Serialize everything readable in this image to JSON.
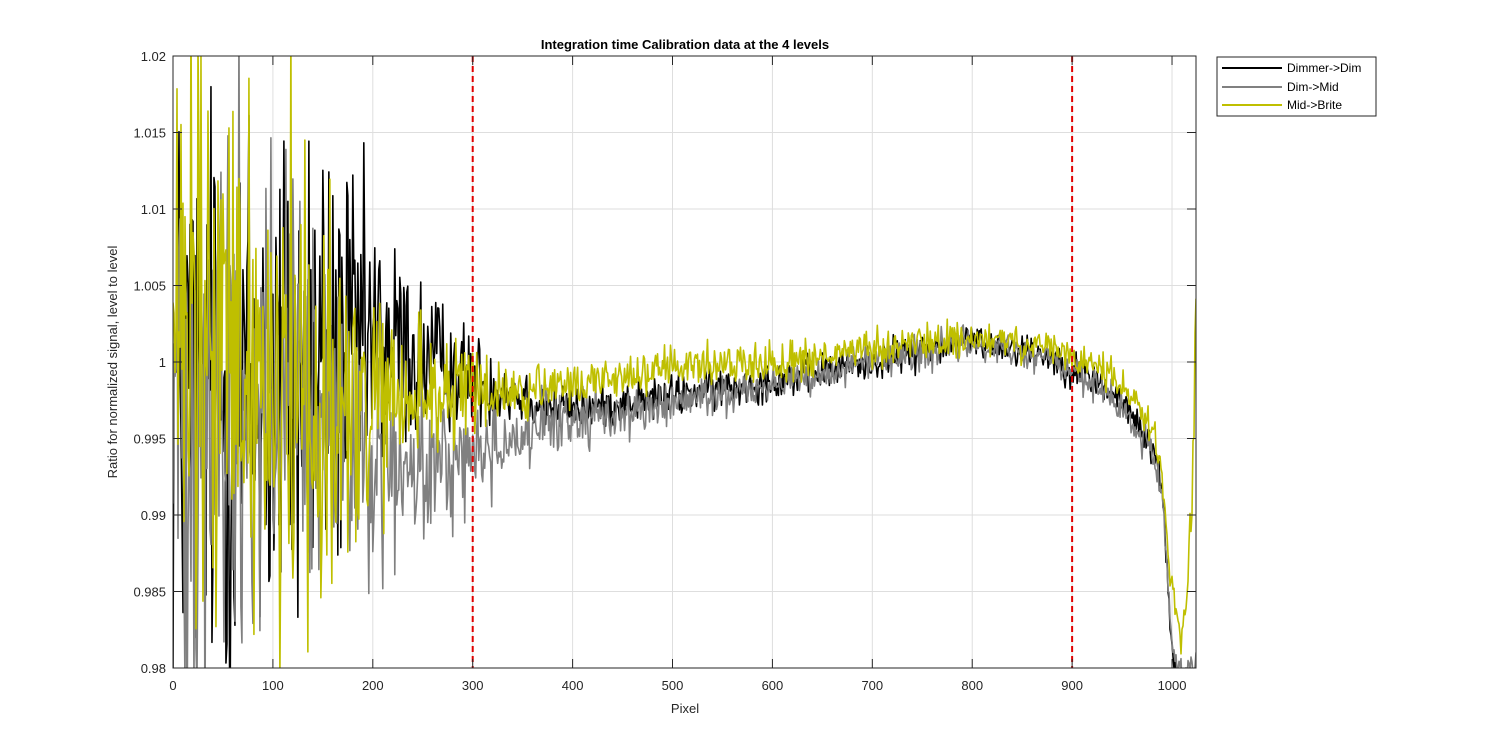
{
  "chart_data": {
    "type": "line",
    "title": "Integration time Calibration data at the 4 levels",
    "xlabel": "Pixel",
    "ylabel": "Ratio for normalized signal, level to level",
    "xlim": [
      0,
      1024
    ],
    "ylim": [
      0.98,
      1.02
    ],
    "x_ticks": [
      0,
      100,
      200,
      300,
      400,
      500,
      600,
      700,
      800,
      900,
      1000
    ],
    "x_tick_labels": [
      "0",
      "100",
      "200",
      "300",
      "400",
      "500",
      "600",
      "700",
      "800",
      "900",
      "1000"
    ],
    "y_ticks": [
      0.98,
      0.985,
      0.99,
      0.995,
      1.0,
      1.005,
      1.01,
      1.015,
      1.02
    ],
    "y_tick_labels": [
      "0.98",
      "0.985",
      "0.99",
      "0.995",
      "1",
      "1.005",
      "1.01",
      "1.015",
      "1.02"
    ],
    "grid": true,
    "legend_position": "outside-top-right",
    "reference_lines": [
      {
        "x": 300,
        "color": "#e00000",
        "style": "dashed"
      },
      {
        "x": 900,
        "color": "#e00000",
        "style": "dashed"
      }
    ],
    "series": [
      {
        "name": "Dimmer->Dim",
        "color": "#000000",
        "x": [
          0,
          20,
          40,
          60,
          80,
          100,
          120,
          140,
          160,
          180,
          200,
          220,
          240,
          260,
          280,
          300,
          320,
          340,
          360,
          380,
          400,
          420,
          440,
          460,
          480,
          500,
          520,
          540,
          560,
          580,
          600,
          620,
          640,
          660,
          680,
          700,
          720,
          740,
          760,
          780,
          800,
          820,
          840,
          860,
          880,
          900,
          920,
          940,
          960,
          980,
          990,
          1000,
          1010,
          1020,
          1024
        ],
        "y": [
          0.998,
          0.998,
          0.998,
          0.998,
          0.998,
          0.998,
          0.999,
          1.0,
          1.0,
          1.0005,
          1.001,
          1.001,
          1.0005,
          1.0,
          0.9995,
          0.999,
          0.9985,
          0.998,
          0.9975,
          0.997,
          0.997,
          0.997,
          0.9972,
          0.9974,
          0.9976,
          0.9978,
          0.998,
          0.9982,
          0.9984,
          0.9986,
          0.9988,
          0.999,
          0.9992,
          0.9995,
          0.9998,
          1.0,
          1.0003,
          1.0006,
          1.0009,
          1.0012,
          1.0014,
          1.0012,
          1.001,
          1.0007,
          1.0003,
          0.9995,
          0.999,
          0.998,
          0.9965,
          0.9945,
          0.992,
          0.981,
          0.978,
          0.979,
          0.98
        ],
        "noise": [
          0.03,
          0.03,
          0.03,
          0.03,
          0.03,
          0.03,
          0.03,
          0.026,
          0.022,
          0.018,
          0.014,
          0.011,
          0.009,
          0.007,
          0.0055,
          0.0045,
          0.0038,
          0.0032,
          0.0028,
          0.0026,
          0.0024,
          0.0022,
          0.0021,
          0.002,
          0.002,
          0.002,
          0.002,
          0.002,
          0.002,
          0.002,
          0.0019,
          0.0019,
          0.0018,
          0.0018,
          0.0018,
          0.0018,
          0.0018,
          0.0018,
          0.0018,
          0.0018,
          0.0017,
          0.0017,
          0.0017,
          0.0017,
          0.0017,
          0.0017,
          0.0018,
          0.0018,
          0.0018,
          0.0018,
          0.0018,
          0.0015,
          0.0015,
          0.0015,
          0.0015
        ]
      },
      {
        "name": "Dim->Mid",
        "color": "#808080",
        "x": [
          0,
          20,
          40,
          60,
          80,
          100,
          120,
          140,
          160,
          180,
          200,
          220,
          240,
          260,
          280,
          300,
          320,
          340,
          360,
          380,
          400,
          420,
          440,
          460,
          480,
          500,
          520,
          540,
          560,
          580,
          600,
          620,
          640,
          660,
          680,
          700,
          720,
          740,
          760,
          780,
          800,
          820,
          840,
          860,
          880,
          900,
          920,
          940,
          960,
          980,
          990,
          1000,
          1010,
          1020,
          1024
        ],
        "y": [
          0.998,
          0.998,
          0.998,
          0.998,
          0.998,
          0.998,
          0.997,
          0.996,
          0.995,
          0.994,
          0.993,
          0.9925,
          0.9925,
          0.993,
          0.9935,
          0.994,
          0.9945,
          0.995,
          0.9955,
          0.996,
          0.9962,
          0.9964,
          0.9966,
          0.9968,
          0.997,
          0.9972,
          0.9975,
          0.9978,
          0.998,
          0.9983,
          0.9986,
          0.9989,
          0.9992,
          0.9995,
          0.9998,
          1.0001,
          1.0004,
          1.0006,
          1.0008,
          1.001,
          1.0011,
          1.001,
          1.0008,
          1.0005,
          1.0001,
          0.9993,
          0.9985,
          0.9975,
          0.996,
          0.994,
          0.9915,
          0.9815,
          0.9795,
          0.98,
          0.981
        ],
        "noise": [
          0.03,
          0.03,
          0.03,
          0.03,
          0.03,
          0.03,
          0.025,
          0.02,
          0.016,
          0.013,
          0.011,
          0.009,
          0.0075,
          0.0065,
          0.0058,
          0.0052,
          0.0046,
          0.0042,
          0.0036,
          0.0032,
          0.0028,
          0.0026,
          0.0024,
          0.0022,
          0.0021,
          0.002,
          0.002,
          0.002,
          0.002,
          0.002,
          0.0019,
          0.0019,
          0.0018,
          0.0018,
          0.0018,
          0.0018,
          0.0018,
          0.0018,
          0.0018,
          0.0018,
          0.0017,
          0.0017,
          0.0017,
          0.0017,
          0.0017,
          0.0017,
          0.0018,
          0.0018,
          0.0018,
          0.0018,
          0.0018,
          0.0015,
          0.0015,
          0.0015,
          0.0015
        ]
      },
      {
        "name": "Mid->Brite",
        "color": "#bfbf00",
        "x": [
          0,
          20,
          40,
          60,
          80,
          100,
          120,
          140,
          160,
          180,
          200,
          220,
          240,
          260,
          280,
          300,
          320,
          340,
          360,
          380,
          400,
          420,
          440,
          460,
          480,
          500,
          520,
          540,
          560,
          580,
          600,
          620,
          640,
          660,
          680,
          700,
          720,
          740,
          760,
          780,
          800,
          820,
          840,
          860,
          880,
          900,
          920,
          940,
          960,
          980,
          990,
          1000,
          1010,
          1020,
          1024
        ],
        "y": [
          1.0,
          1.0,
          1.0,
          1.0,
          1.0,
          1.0,
          0.999,
          0.998,
          0.997,
          0.9965,
          0.9965,
          0.997,
          0.9975,
          0.998,
          0.998,
          0.998,
          0.998,
          0.998,
          0.998,
          0.998,
          0.9985,
          0.9988,
          0.999,
          0.9992,
          0.9994,
          0.9996,
          0.9997,
          0.9998,
          0.9999,
          1.0,
          1.0,
          1.0001,
          1.0002,
          1.0004,
          1.0006,
          1.0008,
          1.001,
          1.0012,
          1.0013,
          1.0014,
          1.0015,
          1.0014,
          1.0012,
          1.001,
          1.0008,
          1.0003,
          0.9998,
          0.999,
          0.9978,
          0.996,
          0.9925,
          0.985,
          0.982,
          0.99,
          1.004
        ],
        "noise": [
          0.03,
          0.03,
          0.03,
          0.03,
          0.03,
          0.03,
          0.028,
          0.024,
          0.02,
          0.016,
          0.012,
          0.009,
          0.0075,
          0.0062,
          0.0052,
          0.0045,
          0.0038,
          0.0032,
          0.0028,
          0.0026,
          0.0024,
          0.0022,
          0.0021,
          0.002,
          0.002,
          0.002,
          0.002,
          0.002,
          0.002,
          0.002,
          0.0019,
          0.0019,
          0.0018,
          0.0018,
          0.0018,
          0.0018,
          0.0018,
          0.0018,
          0.0018,
          0.0018,
          0.0017,
          0.0017,
          0.0017,
          0.0017,
          0.0017,
          0.0017,
          0.0018,
          0.0018,
          0.0018,
          0.0018,
          0.0018,
          0.0018,
          0.0025,
          0.004,
          0.004
        ]
      }
    ]
  }
}
